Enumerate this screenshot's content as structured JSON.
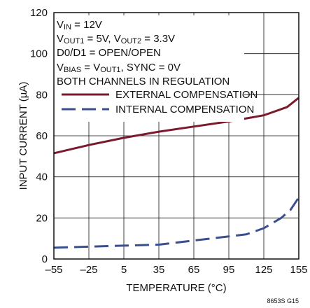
{
  "chart_data": {
    "type": "line",
    "xlabel": "TEMPERATURE (°C)",
    "ylabel": "INPUT CURRENT (µA)",
    "xlim": [
      -55,
      155
    ],
    "ylim": [
      0,
      120
    ],
    "x_ticks": [
      "–55",
      "–25",
      "5",
      "35",
      "65",
      "95",
      "125",
      "155"
    ],
    "x_tick_values": [
      -55,
      -25,
      5,
      35,
      65,
      95,
      125,
      155
    ],
    "y_ticks": [
      "0",
      "20",
      "40",
      "60",
      "80",
      "100",
      "120"
    ],
    "y_tick_values": [
      0,
      20,
      40,
      60,
      80,
      100,
      120
    ],
    "grid": true,
    "legend_position": "top-left",
    "conditions": [
      {
        "type": "sub",
        "base": "V",
        "sub": "IN",
        "rest": " = 12V"
      },
      {
        "type": "sub2",
        "base": "V",
        "sub": "OUT1",
        "mid": " = 5V, V",
        "sub2": "OUT2",
        "rest": " = 3.3V"
      },
      {
        "type": "plain",
        "text": "D0/D1 = OPEN/OPEN"
      },
      {
        "type": "sub2",
        "base": "V",
        "sub": "BIAS",
        "mid": " = V",
        "sub2": "OUT1",
        "rest": ", SYNC = 0V"
      },
      {
        "type": "plain",
        "text": "BOTH CHANNELS IN REGULATION"
      }
    ],
    "series": [
      {
        "name": "EXTERNAL COMPENSATION",
        "color": "#7b1a2c",
        "dash": "solid",
        "x": [
          -55,
          -25,
          5,
          35,
          65,
          95,
          110,
          125,
          145,
          155
        ],
        "y": [
          51.5,
          55.5,
          59,
          62,
          64.5,
          67,
          68.5,
          70,
          74,
          78.5
        ]
      },
      {
        "name": "INTERNAL COMPENSATION",
        "color": "#3b4f8f",
        "dash": "dashed",
        "x": [
          -55,
          -25,
          5,
          35,
          65,
          95,
          110,
          125,
          140,
          148,
          155
        ],
        "y": [
          5.5,
          6,
          6.5,
          7,
          9,
          11,
          12,
          15,
          20,
          24,
          30
        ]
      }
    ],
    "figure_code": "8653S G15"
  }
}
